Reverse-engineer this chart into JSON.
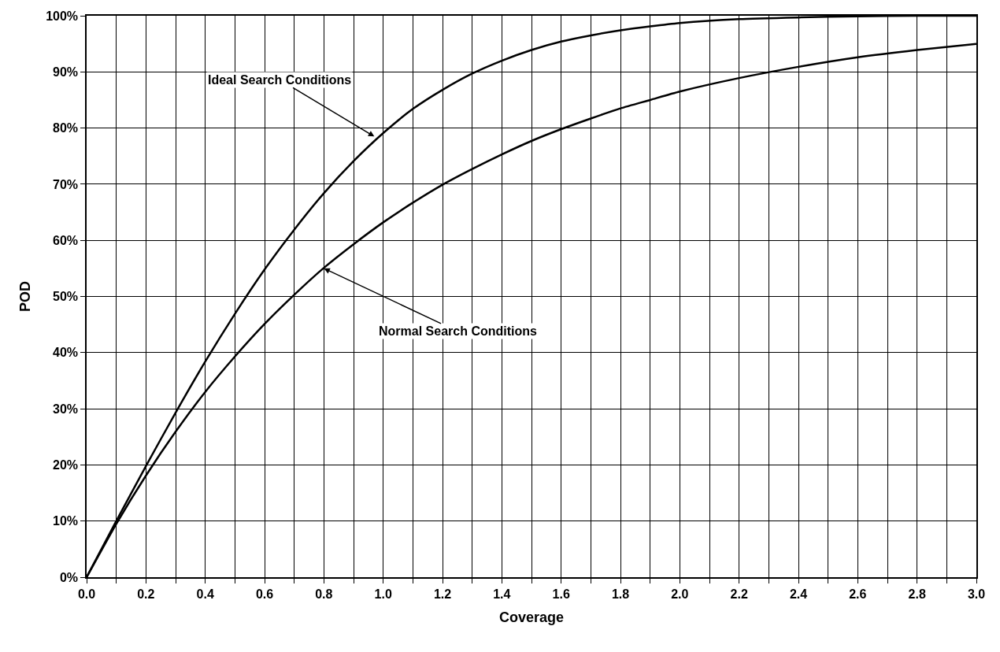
{
  "chart_data": {
    "type": "line",
    "xlabel": "Coverage",
    "ylabel": "POD",
    "xlim": [
      0,
      3
    ],
    "ylim": [
      0,
      100
    ],
    "xticks": [
      {
        "value": 0,
        "label": "0.0"
      },
      {
        "value": 0.1,
        "label": null
      },
      {
        "value": 0.2,
        "label": "0.2"
      },
      {
        "value": 0.3,
        "label": null
      },
      {
        "value": 0.4,
        "label": "0.4"
      },
      {
        "value": 0.5,
        "label": null
      },
      {
        "value": 0.6,
        "label": "0.6"
      },
      {
        "value": 0.7,
        "label": null
      },
      {
        "value": 0.8,
        "label": "0.8"
      },
      {
        "value": 0.9,
        "label": null
      },
      {
        "value": 1.0,
        "label": "1.0"
      },
      {
        "value": 1.1,
        "label": null
      },
      {
        "value": 1.2,
        "label": "1.2"
      },
      {
        "value": 1.3,
        "label": null
      },
      {
        "value": 1.4,
        "label": "1.4"
      },
      {
        "value": 1.5,
        "label": null
      },
      {
        "value": 1.6,
        "label": "1.6"
      },
      {
        "value": 1.7,
        "label": null
      },
      {
        "value": 1.8,
        "label": "1.8"
      },
      {
        "value": 1.9,
        "label": null
      },
      {
        "value": 2.0,
        "label": "2.0"
      },
      {
        "value": 2.1,
        "label": null
      },
      {
        "value": 2.2,
        "label": "2.2"
      },
      {
        "value": 2.3,
        "label": null
      },
      {
        "value": 2.4,
        "label": "2.4"
      },
      {
        "value": 2.5,
        "label": null
      },
      {
        "value": 2.6,
        "label": "2.6"
      },
      {
        "value": 2.7,
        "label": null
      },
      {
        "value": 2.8,
        "label": "2.8"
      },
      {
        "value": 2.9,
        "label": null
      },
      {
        "value": 3.0,
        "label": "3.0"
      }
    ],
    "yticks": [
      {
        "value": 0,
        "label": "0%"
      },
      {
        "value": 10,
        "label": "10%"
      },
      {
        "value": 20,
        "label": "20%"
      },
      {
        "value": 30,
        "label": "30%"
      },
      {
        "value": 40,
        "label": "40%"
      },
      {
        "value": 50,
        "label": "50%"
      },
      {
        "value": 60,
        "label": "60%"
      },
      {
        "value": 70,
        "label": "70%"
      },
      {
        "value": 80,
        "label": "80%"
      },
      {
        "value": 90,
        "label": "90%"
      },
      {
        "value": 100,
        "label": "100%"
      }
    ],
    "grid": true,
    "marker": "none",
    "line_style": "solid",
    "x": [
      0,
      0.1,
      0.2,
      0.3,
      0.4,
      0.5,
      0.6,
      0.7,
      0.8,
      0.9,
      1.0,
      1.1,
      1.2,
      1.3,
      1.4,
      1.5,
      1.6,
      1.7,
      1.8,
      1.9,
      2.0,
      2.2,
      2.4,
      2.6,
      2.8,
      3.0
    ],
    "series": [
      {
        "color": "#000000",
        "values": [
          0,
          10,
          19.8,
          29.3,
          38.4,
          46.9,
          54.8,
          61.9,
          68.4,
          74.1,
          79.1,
          83.4,
          86.8,
          89.7,
          92,
          93.9,
          95.4,
          96.5,
          97.4,
          98.1,
          98.7,
          99.4,
          99.7,
          99.9,
          100,
          100
        ]
      },
      {
        "color": "#000000",
        "values": [
          0,
          9.5,
          18.1,
          25.9,
          33,
          39.3,
          45.1,
          50.3,
          55.1,
          59.3,
          63.2,
          66.7,
          69.9,
          72.7,
          75.3,
          77.7,
          79.8,
          81.7,
          83.5,
          85,
          86.5,
          88.9,
          90.9,
          92.6,
          93.9,
          95
        ]
      }
    ],
    "annotations": [
      {
        "text": "Ideal Search Conditions",
        "x": 0.97,
        "y": 78.5
      },
      {
        "text": "Normal Search Conditions",
        "x": 0.8,
        "y": 55
      }
    ]
  }
}
